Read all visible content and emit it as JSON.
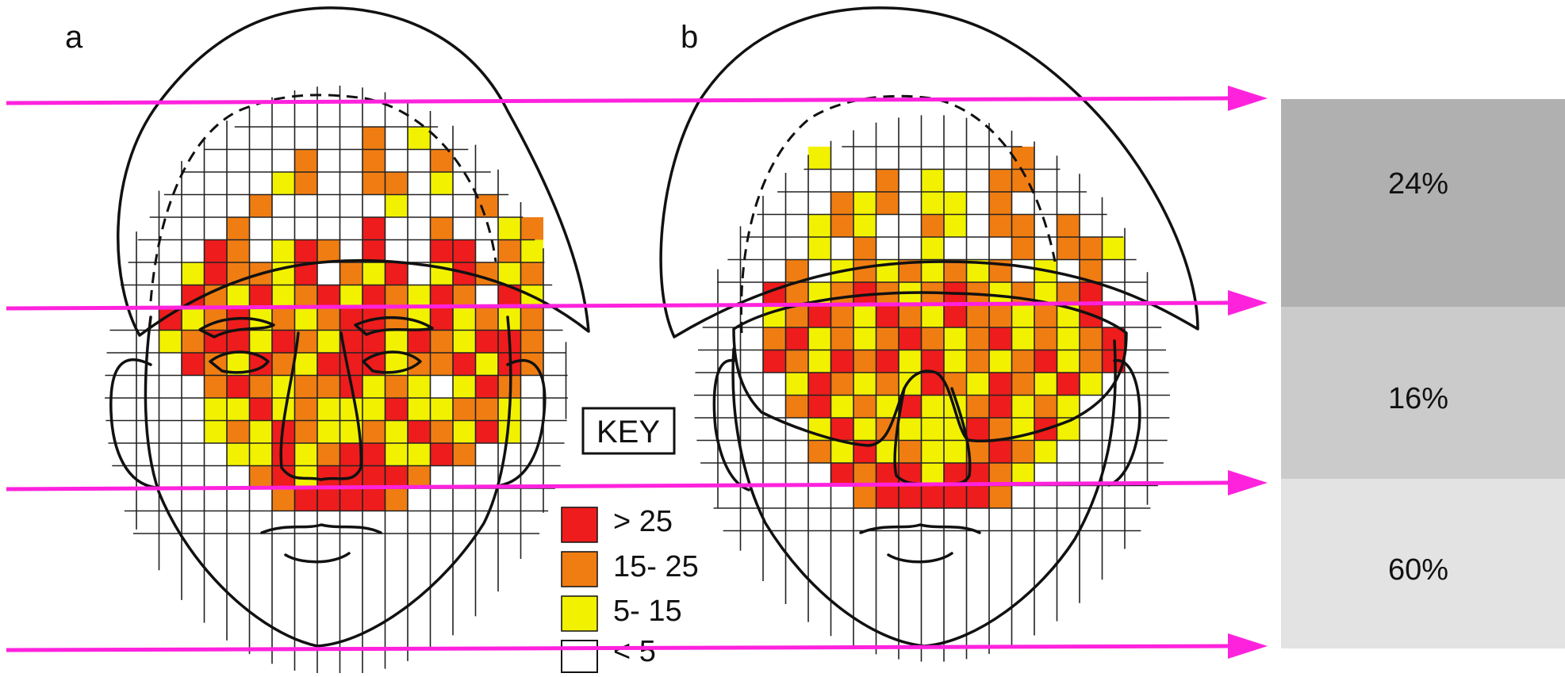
{
  "panels": [
    {
      "letter": "a",
      "variant": "cap-only"
    },
    {
      "letter": "b",
      "variant": "cap-and-visor"
    }
  ],
  "key": {
    "title": "KEY",
    "entries": [
      {
        "label": "> 25",
        "color": "#ee1c1c"
      },
      {
        "label": "15- 25",
        "color": "#f07d12"
      },
      {
        "label": "5- 15",
        "color": "#f2f200"
      },
      {
        "label": "< 5",
        "color": "#ffffff"
      }
    ]
  },
  "bands": [
    {
      "label": "24%",
      "color": "#b0b0b0"
    },
    {
      "label": "16%",
      "color": "#cbcbcb"
    },
    {
      "label": "60%",
      "color": "#e3e3e3"
    }
  ],
  "arrow_color": "#ff22dd",
  "grid_colors": {
    "a": [
      "..........O.Y......",
      ".......O..O..O.....",
      "......YO..OO.Y.....",
      ".....O.....Y...O...",
      "....O.....R..O..YO.",
      "...RO.YRO.R..RR.OY.",
      "..YROOYR.OYR.YROYO.",
      "..ROYRYORYROYRO.RY.",
      ".RYORYOYORROYRYOYO.",
      ".YORRYROYRRYROYRRO.",
      "..ROYROYRRRYOORYRO.",
      "...OROYOORYOY.YRO..",
      "...YYRYOYYYRYYOOY..",
      "...YOYROYYOYROYRY..",
      "....YYRYORRYYRO....",
      ".....ORYRRRRO......",
      "......ORRRRO......."
    ],
    "b": [
      "....Y........O.....",
      ".......O.Y..OO.....",
      ".....OYO.YY.O......",
      "....YOY..OY.OO.O...",
      "....Y.O..Y...O.OOY.",
      "...O.YOYOYOYO.Y.O..",
      "..ROYOROYOROYOYOR..",
      "..YOROYROYROOYOYR..",
      "..ORYOYOROYORYOYOR.",
      "..ROYRORYRYOYORYOR.",
      "...YROYOYROYROYRY..",
      "...ORYOYRYYORYOY...",
      "....YRYOYYYROYRY...",
      "....OYRYOYYOROY....",
      ".....RORRYRROY.....",
      "......ORRRRRO......"
    ]
  }
}
